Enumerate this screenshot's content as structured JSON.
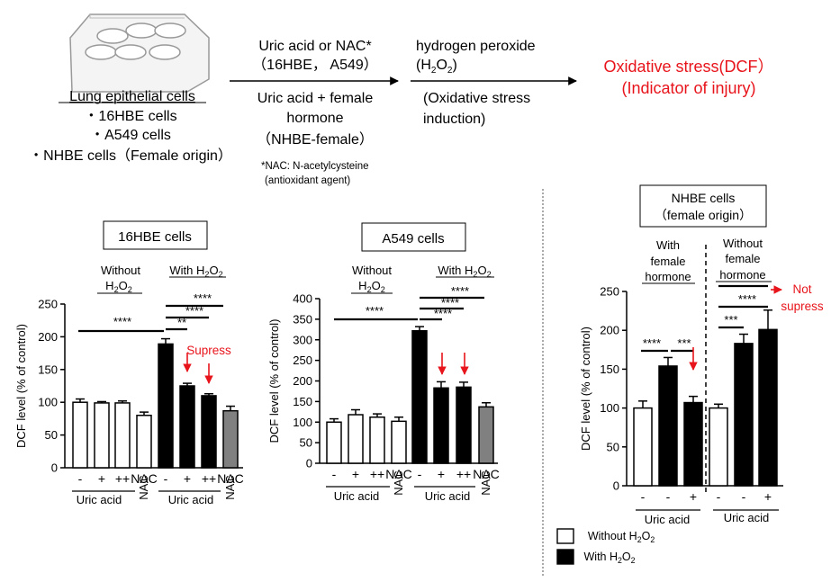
{
  "header": {
    "cells_title": "Lung epithelial cells",
    "cell_lines": [
      "・16HBE cells",
      "・A549 cells",
      "・NHBE cells（Female origin）"
    ],
    "step1_top": [
      "Uric acid or NAC*",
      "（16HBE， A549）"
    ],
    "step1_bottom": [
      "Uric acid + female",
      "hormone",
      "（NHBE-female）"
    ],
    "footnote": [
      "*NAC: N-acetylcysteine",
      "(antioxidant agent)"
    ],
    "step2_top": [
      "hydrogen peroxide"
    ],
    "step2_formula": {
      "open": "(H",
      "sub1": "2",
      "mid": "O",
      "sub2": "2",
      "close": ")"
    },
    "step2_bottom": [
      "(Oxidative stress",
      "induction)"
    ],
    "result": [
      "Oxidative stress(DCF）",
      "(Indicator of injury)"
    ],
    "colors": {
      "accent_red": "#e8141b",
      "white_bar": "#ffffff",
      "black_bar": "#000000",
      "gray_bar": "#808080"
    }
  },
  "common": {
    "ylabel": "DCF level (% of control)",
    "without_h2o2": "Without",
    "with_h2o2": "With H",
    "h2o2_h": "H",
    "h2o2_o": "O",
    "sub2": "2",
    "uric_acid": "Uric acid",
    "nac": "NAC",
    "suppress_label": "Supress"
  },
  "panels": {
    "hbe": {
      "title": "16HBE cells"
    },
    "a549": {
      "title": "A549 cells"
    },
    "nhbe": {
      "title_lines": [
        "NHBE cells",
        "（female origin）"
      ],
      "group_with": [
        "With",
        "female",
        "hormone"
      ],
      "group_without": [
        "Without",
        "female",
        "hormone"
      ],
      "not_suppress": [
        "Not",
        "supress"
      ],
      "legend_without": "Without H",
      "legend_with": "With H"
    }
  },
  "chart_data": [
    {
      "type": "bar",
      "title": "16HBE cells",
      "ylabel": "DCF level (% of control)",
      "ylim": [
        0,
        250
      ],
      "yticks": [
        0,
        50,
        100,
        150,
        200,
        250
      ],
      "categories": [
        "-",
        "+",
        "++",
        "NAC",
        "-",
        "+",
        "++",
        "NAC"
      ],
      "groups": [
        "Without H2O2",
        "With H2O2"
      ],
      "xlabel_groups": [
        "Uric acid",
        "Uric acid"
      ],
      "values": [
        100,
        99,
        99,
        80,
        189,
        125,
        110,
        87
      ],
      "errors": [
        5,
        2,
        3,
        5,
        8,
        4,
        3,
        7
      ],
      "colors": [
        "#ffffff",
        "#ffffff",
        "#ffffff",
        "#ffffff",
        "#000000",
        "#000000",
        "#000000",
        "#808080"
      ],
      "significance": [
        "****",
        "****",
        "****",
        "**"
      ],
      "annotation": "Supress"
    },
    {
      "type": "bar",
      "title": "A549 cells",
      "ylabel": "DCF level (% of control)",
      "ylim": [
        0,
        400
      ],
      "yticks": [
        0,
        50,
        100,
        150,
        200,
        250,
        300,
        350,
        400
      ],
      "categories": [
        "-",
        "+",
        "++",
        "NAC",
        "-",
        "+",
        "++",
        "NAC"
      ],
      "groups": [
        "Without H2O2",
        "With H2O2"
      ],
      "xlabel_groups": [
        "Uric acid",
        "Uric acid"
      ],
      "values": [
        100,
        118,
        112,
        102,
        322,
        183,
        185,
        137
      ],
      "errors": [
        8,
        12,
        8,
        10,
        10,
        15,
        12,
        10
      ],
      "colors": [
        "#ffffff",
        "#ffffff",
        "#ffffff",
        "#ffffff",
        "#000000",
        "#000000",
        "#000000",
        "#808080"
      ],
      "significance": [
        "****",
        "****",
        "****",
        "****"
      ]
    },
    {
      "type": "bar",
      "title": "NHBE cells (female origin)",
      "ylabel": "DCF level (% of control)",
      "ylim": [
        0,
        250
      ],
      "yticks": [
        0,
        50,
        100,
        150,
        200,
        250
      ],
      "categories": [
        "-",
        "-",
        "+",
        "-",
        "-",
        "+"
      ],
      "groups": [
        "With female hormone",
        "Without female hormone"
      ],
      "xlabel_groups": [
        "Uric acid",
        "Uric acid"
      ],
      "series": [
        {
          "name": "Without H2O2",
          "values": [
            100,
            null,
            null,
            100,
            null,
            null
          ]
        },
        {
          "name": "With H2O2",
          "values": [
            null,
            154,
            107,
            null,
            183,
            201
          ]
        }
      ],
      "values": [
        100,
        154,
        107,
        100,
        183,
        201
      ],
      "errors": [
        9,
        11,
        8,
        5,
        12,
        25
      ],
      "significance": [
        "****",
        "***",
        "***",
        "****"
      ],
      "annotation": "Not supress",
      "legend": [
        "Without H2O2",
        "With H2O2"
      ]
    }
  ]
}
